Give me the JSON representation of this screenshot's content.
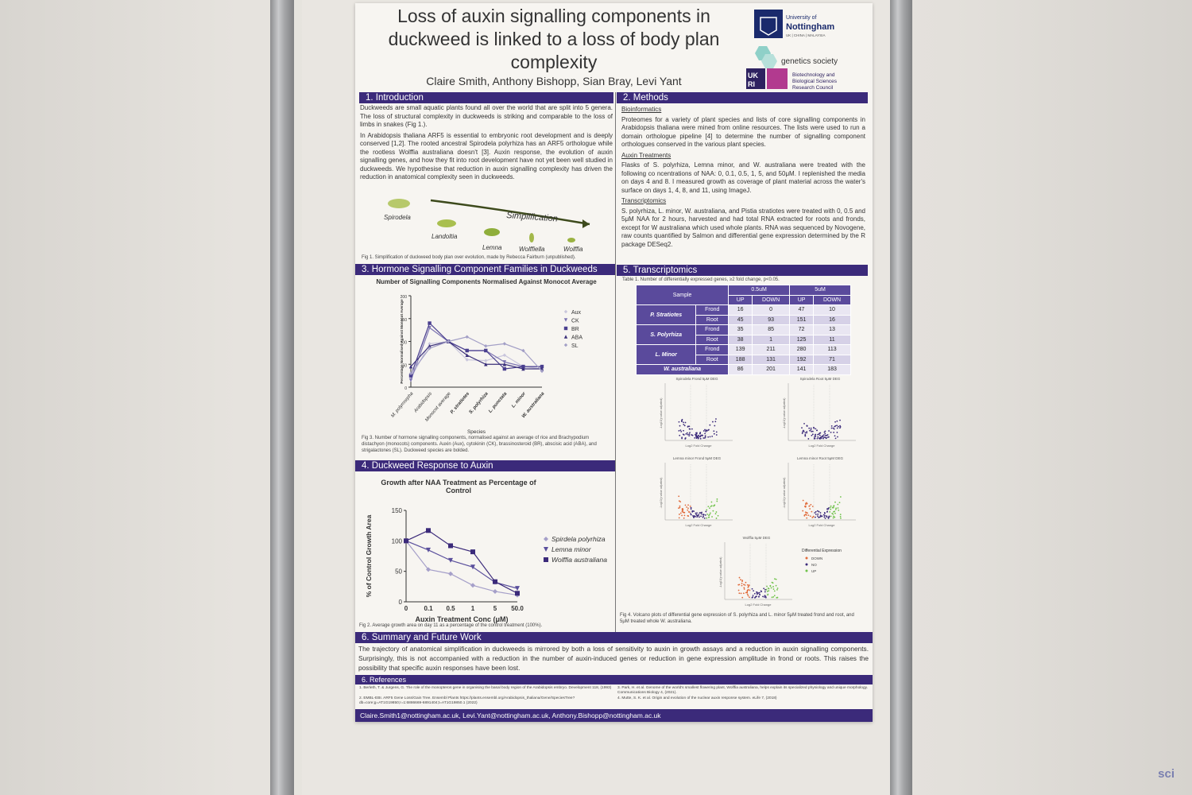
{
  "poster": {
    "title": "Loss of auxin signalling components in duckweed is linked to a loss of body plan complexity",
    "authors": "Claire Smith, Anthony Bishopp, Sian Bray, Levi Yant",
    "logos": {
      "uni_name": "University of Nottingham",
      "uni_sub": "UK | CHINA | MALAYSIA",
      "genetics": "genetics society",
      "ukri": "UKRI",
      "bbsrc": "Biotechnology and Biological Sciences Research Council"
    },
    "intro": {
      "heading": "1.   Introduction",
      "p1": "Duckweeds are small aquatic plants found all over the world that are split into 5 genera. The loss of structural complexity in duckweeds is striking and comparable to the loss of limbs in snakes (Fig 1.).",
      "p2": "In Arabidopsis thaliana ARF5 is essential to embryonic root development and is deeply conserved [1,2]. The rooted ancestral Spirodela polyrhiza has an ARF5 orthologue while the rootless Wolffia australiana doesn't [3]. Auxin response, the evolution of auxin signalling genes, and how they fit into root development have not yet been well studied in duckweeds. We hypothesise that reduction in auxin signalling complexity has driven the reduction in anatomical complexity seen in duckweeds.",
      "fig_labels": [
        "Spirodela",
        "Landoltia",
        "Lemna",
        "Wolffiella",
        "Wolffia"
      ],
      "arrow_label": "Simplification",
      "caption": "Fig 1. Simplification of duckweed body plan over evolution, made by Rebecca Fairburn (unpublished)."
    },
    "methods": {
      "heading": "2. Methods",
      "sub1": "Bioinformatics",
      "p1": "Proteomes for a variety of plant species and lists of core signalling components in Arabidopsis thaliana were mined from online resources. The lists were used to run a domain orthologue pipeline [4] to determine the number of signalling component orthologues conserved in the various plant species.",
      "sub2": "Auxin Treatments",
      "p2": "Flasks of S. polyrhiza, Lemna minor, and W. australiana were treated with the following co ncentrations of NAA: 0, 0.1, 0.5, 1, 5, and 50μM. I replenished the media on days 4 and 8. I measured growth as coverage of plant material across the water's surface on days 1, 4, 8, and 11, using ImageJ.",
      "sub3": "Transcriptomics",
      "p3": "S. polyrhiza, L. minor, W. australiana, and Pistia stratiotes were treated with 0, 0.5 and 5μM NAA for 2 hours, harvested and had total RNA extracted for roots and fronds, except for W australiana which used whole plants. RNA was sequenced by Novogene, raw counts quantified by Salmon and differential gene expression determined by the R package DESeq2."
    },
    "hormone": {
      "heading": "3. Hormone Signalling Component Families in Duckweeds",
      "caption": "Fig 3. Number of hormone signalling components, normalised against an average of rice and Brachypodium distachyon (monocots) components. Auxin (Aux), cytokinin (CK), brassinosteroid (BR), abscisic acid (ABA), and strigalactones (SL). Duckweed species are bolded."
    },
    "auxin": {
      "heading": "4. Duckweed Response to Auxin",
      "caption": "Fig 2. Average growth area on day 11 as a percentage of the control treatment (100%)."
    },
    "transcriptomics": {
      "heading": "5. Transcriptomics",
      "table_caption": "Table 1. Number of differentially expressed genes, ≥2 fold change, p<0.05.",
      "table": {
        "col_sample": "Sample",
        "col_05": "0.5uM",
        "col_5": "5uM",
        "up": "UP",
        "down": "DOWN",
        "rows": [
          {
            "species": "P. Stratiotes",
            "tissue": "Frond",
            "v": [
              "16",
              "0",
              "47",
              "10"
            ]
          },
          {
            "species": "",
            "tissue": "Root",
            "v": [
              "45",
              "93",
              "151",
              "16"
            ]
          },
          {
            "species": "S. Polyrhiza",
            "tissue": "Frond",
            "v": [
              "35",
              "85",
              "72",
              "13"
            ]
          },
          {
            "species": "",
            "tissue": "Root",
            "v": [
              "38",
              "1",
              "125",
              "11"
            ]
          },
          {
            "species": "L. Minor",
            "tissue": "Frond",
            "v": [
              "139",
              "211",
              "280",
              "113"
            ]
          },
          {
            "species": "",
            "tissue": "Root",
            "v": [
              "188",
              "131",
              "192",
              "71"
            ]
          },
          {
            "species": "W. australiana",
            "tissue": "",
            "v": [
              "86",
              "201",
              "141",
              "183"
            ]
          }
        ]
      },
      "volcano_titles": [
        "Spirodela Frond 5μM DEG",
        "Spirodela Root 5μM DEG",
        "Lemna minor Frond 5μM DEG",
        "Lemna minor Root 5μM DEG",
        "Wolffia 5μM DEG"
      ],
      "volcano_x": "Log2 Fold Change",
      "volcano_y": "-Log10(p value adjusted)",
      "legend_title": "Differential Expression",
      "legend_items": [
        "DOWN",
        "NO",
        "UP"
      ],
      "caption": "Fig 4. Volcano plots of differential gene expression of S. polyrhiza and L. minor 5μM treated frond and root, and 5μM treated whole W. australiana."
    },
    "summary": {
      "heading": "6. Summary and Future Work",
      "text": "The trajectory of anatomical simplification in duckweeds is mirrored by both a loss of sensitivity to auxin in growth assays and a reduction in auxin signalling components. Surprisingly, this is not accompanied with a reduction in the number of auxin-induced genes or reduction in gene expression amplitude in frond or roots. This raises the possibility that specific auxin responses have been lost."
    },
    "references": {
      "heading": "6. References",
      "r1": "1. Berleth, T. & Jurgens, G. The role of the monopteros gene in organising the basal body region of the Arabidopsis embryo. Development 118, (1993)",
      "r2": "2. EMBL-EBI. ARF5 Gene Loss/Gain Tree. Ensembl Plants https://plants.ensembl.org/Arabidopsis_thaliana/Gene/SpeciesTree?db=core;g=AT1G19850;r=1:6886669-6891404;t=AT1G19850.1 (2022)",
      "r3": "3. Park, H. et al. Genome of the world's smallest flowering plant, Wolffia australiana, helps explain its specialized physiology and unique morphology. Communications Biology 4, (2021).",
      "r4": "4. Mutte, S. K. et al. Origin and evolution of the nuclear auxin response system. eLife 7, (2018)"
    },
    "footer": "Claire.Smith1@nottingham.ac.uk, Levi.Yant@nottingham.ac.uk, Anthony.Bishopp@nottingham.ac.uk"
  },
  "watermark": "sci",
  "chart_data": [
    {
      "type": "line",
      "title": "Number of Signalling Components Normalised Against Monocot Average",
      "xlabel": "Species",
      "ylabel": "Percentage Normalised Against Monocot Average",
      "categories": [
        "M. polymorpha",
        "Arabidopsis",
        "Monocot average",
        "P. stratiotes",
        "S. polyrhiza",
        "L. punctata",
        "L. minor",
        "W. australiana"
      ],
      "ylim": [
        0,
        200
      ],
      "yticks": [
        0,
        50,
        100,
        150,
        200
      ],
      "series": [
        {
          "name": "Aux",
          "values": [
            20,
            95,
            100,
            60,
            58,
            70,
            45,
            40
          ]
        },
        {
          "name": "CK",
          "values": [
            15,
            130,
            100,
            80,
            80,
            55,
            45,
            45
          ]
        },
        {
          "name": "BR",
          "values": [
            25,
            140,
            100,
            80,
            80,
            40,
            45,
            45
          ]
        },
        {
          "name": "ABA",
          "values": [
            45,
            90,
            100,
            70,
            50,
            50,
            40,
            40
          ]
        },
        {
          "name": "SL",
          "values": [
            30,
            85,
            100,
            110,
            90,
            95,
            80,
            35
          ]
        }
      ],
      "colors": [
        "#c9c6dc",
        "#7c74b2",
        "#4a3f8f",
        "#3a2f7a",
        "#a39fc6"
      ],
      "legend": "right"
    },
    {
      "type": "line",
      "title": "Growth after NAA Treatment as Percentage of Control",
      "xlabel": "Auxin Treatment Conc (μM)",
      "ylabel": "% of Control Growth Area",
      "categories": [
        "0",
        "0.1",
        "0.5",
        "1",
        "5",
        "50.0"
      ],
      "ylim": [
        0,
        150
      ],
      "yticks": [
        0,
        50,
        100,
        150
      ],
      "series": [
        {
          "name": "Spirdela polyrhiza",
          "values": [
            100,
            53,
            46,
            27,
            17,
            11
          ]
        },
        {
          "name": "Lemna minor",
          "values": [
            100,
            85,
            68,
            57,
            32,
            22
          ]
        },
        {
          "name": "Wolffia australiana",
          "values": [
            100,
            117,
            92,
            82,
            33,
            14
          ]
        }
      ],
      "colors": [
        "#a59fc9",
        "#5a4f9c",
        "#3b2a7a"
      ],
      "legend": "right"
    }
  ]
}
